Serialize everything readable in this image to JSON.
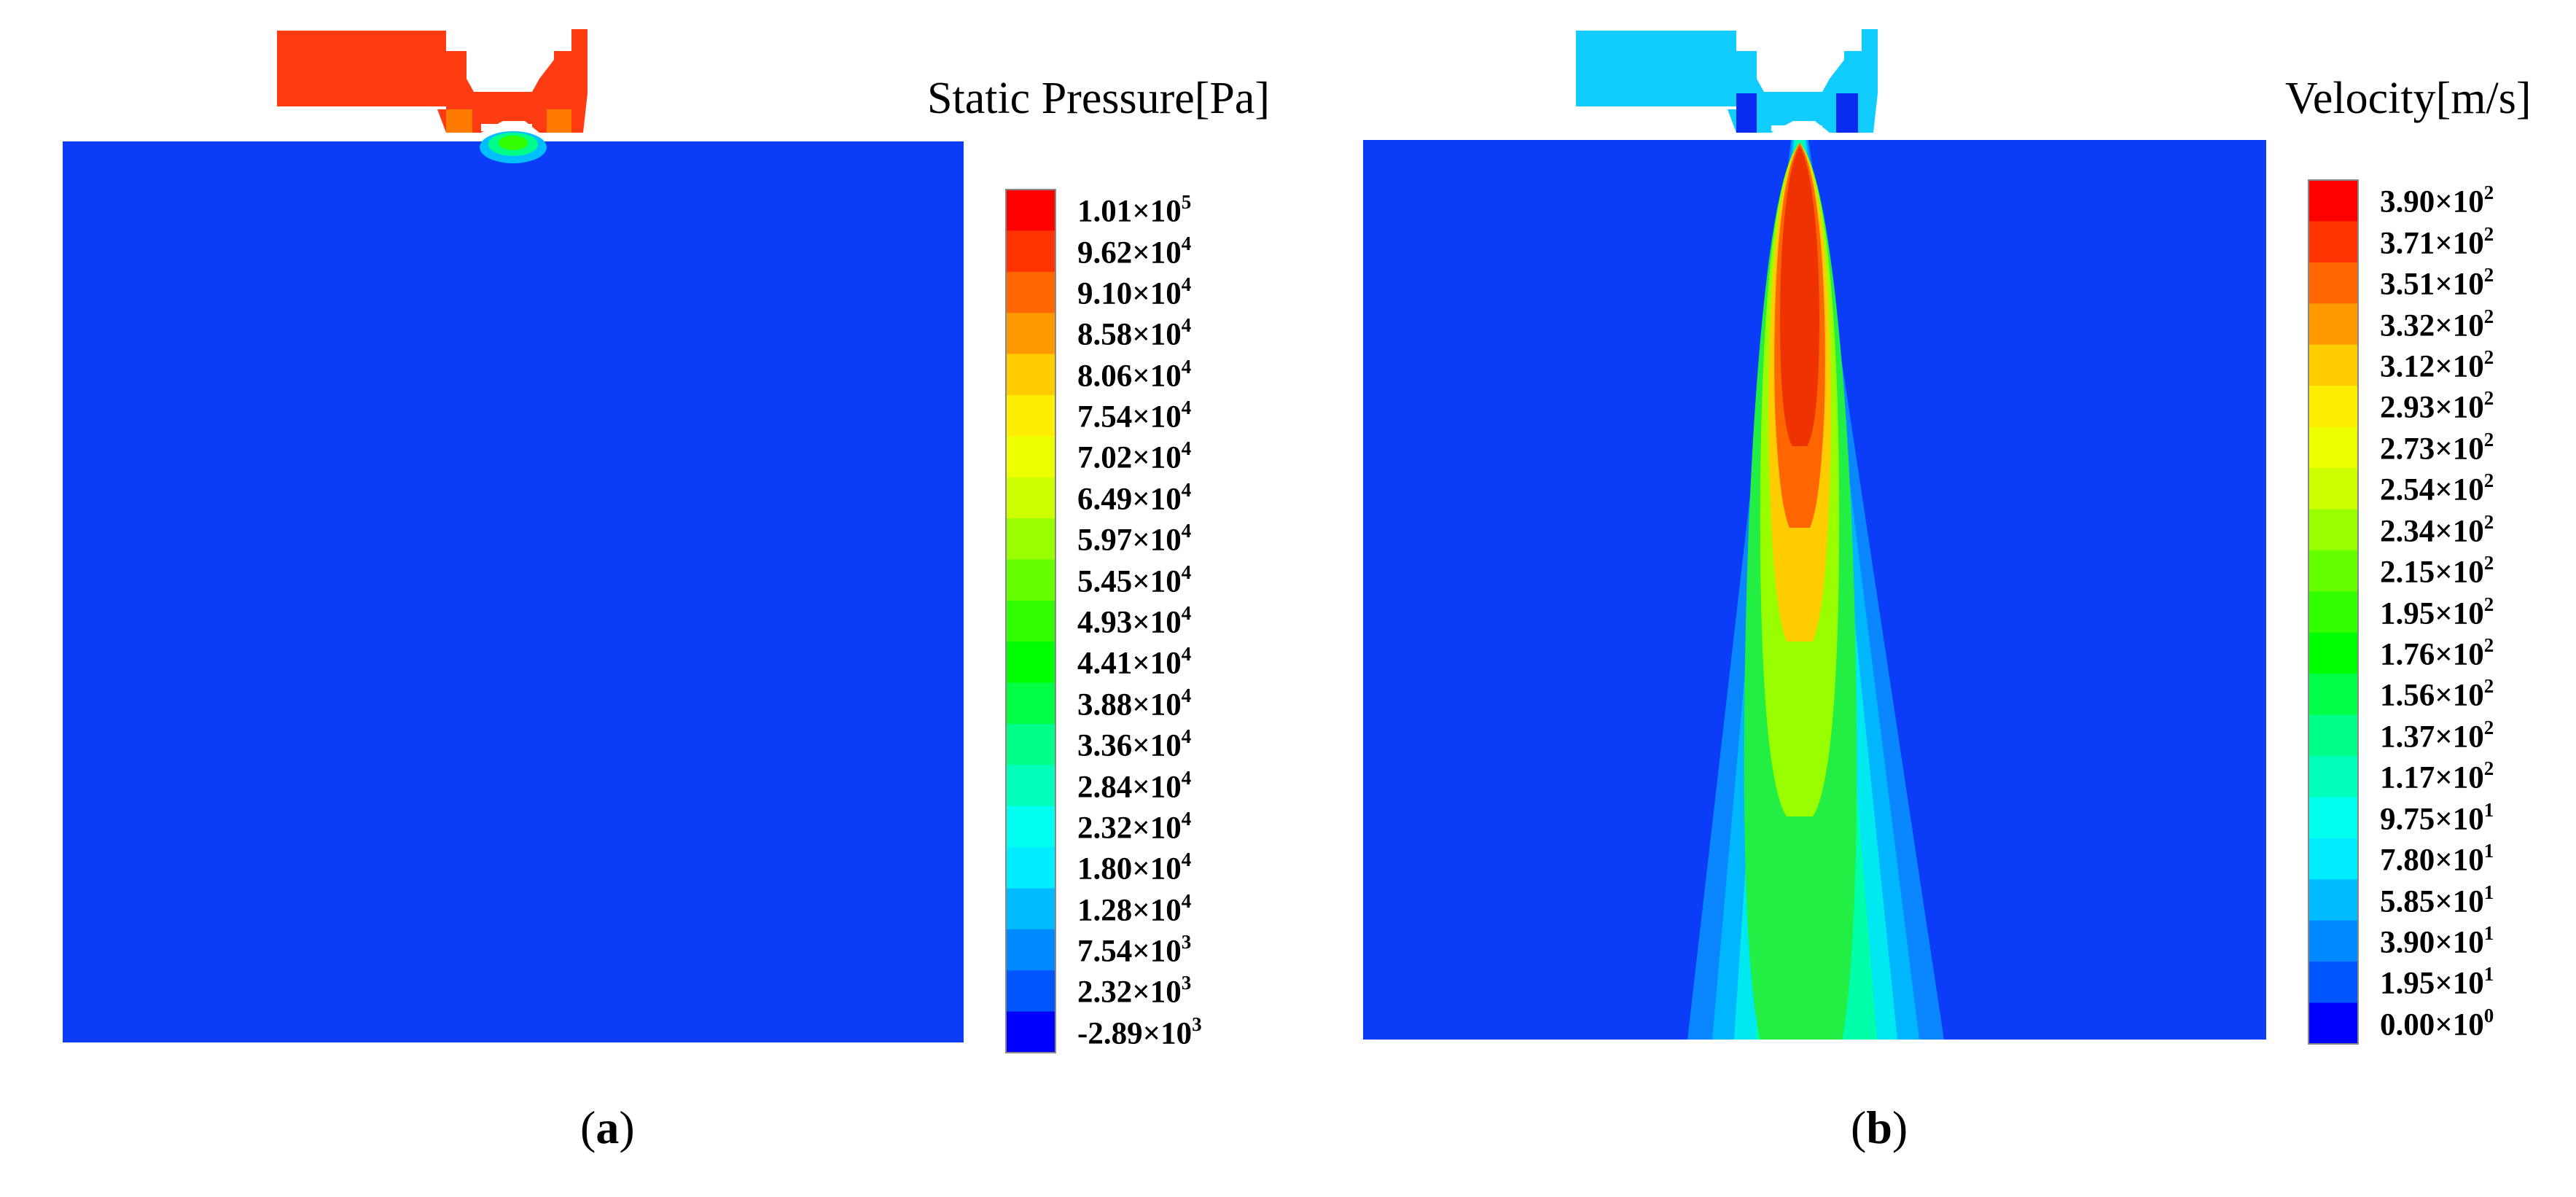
{
  "panels": [
    {
      "id": "a",
      "label": "a",
      "legend_title": "Static Pressure[Pa]",
      "colorbar": {
        "labels": [
          {
            "mantissa": "1.01",
            "exp": "5"
          },
          {
            "mantissa": "9.62",
            "exp": "4"
          },
          {
            "mantissa": "9.10",
            "exp": "4"
          },
          {
            "mantissa": "8.58",
            "exp": "4"
          },
          {
            "mantissa": "8.06",
            "exp": "4"
          },
          {
            "mantissa": "7.54",
            "exp": "4"
          },
          {
            "mantissa": "7.02",
            "exp": "4"
          },
          {
            "mantissa": "6.49",
            "exp": "4"
          },
          {
            "mantissa": "5.97",
            "exp": "4"
          },
          {
            "mantissa": "5.45",
            "exp": "4"
          },
          {
            "mantissa": "4.93",
            "exp": "4"
          },
          {
            "mantissa": "4.41",
            "exp": "4"
          },
          {
            "mantissa": "3.88",
            "exp": "4"
          },
          {
            "mantissa": "3.36",
            "exp": "4"
          },
          {
            "mantissa": "2.84",
            "exp": "4"
          },
          {
            "mantissa": "2.32",
            "exp": "4"
          },
          {
            "mantissa": "1.80",
            "exp": "4"
          },
          {
            "mantissa": "1.28",
            "exp": "4"
          },
          {
            "mantissa": "7.54",
            "exp": "3"
          },
          {
            "mantissa": "2.32",
            "exp": "3"
          },
          {
            "mantissa": "-2.89",
            "exp": "3"
          }
        ]
      }
    },
    {
      "id": "b",
      "label": "b",
      "legend_title": "Velocity[m/s]",
      "colorbar": {
        "labels": [
          {
            "mantissa": "3.90",
            "exp": "2"
          },
          {
            "mantissa": "3.71",
            "exp": "2"
          },
          {
            "mantissa": "3.51",
            "exp": "2"
          },
          {
            "mantissa": "3.32",
            "exp": "2"
          },
          {
            "mantissa": "3.12",
            "exp": "2"
          },
          {
            "mantissa": "2.93",
            "exp": "2"
          },
          {
            "mantissa": "2.73",
            "exp": "2"
          },
          {
            "mantissa": "2.54",
            "exp": "2"
          },
          {
            "mantissa": "2.34",
            "exp": "2"
          },
          {
            "mantissa": "2.15",
            "exp": "2"
          },
          {
            "mantissa": "1.95",
            "exp": "2"
          },
          {
            "mantissa": "1.76",
            "exp": "2"
          },
          {
            "mantissa": "1.56",
            "exp": "2"
          },
          {
            "mantissa": "1.37",
            "exp": "2"
          },
          {
            "mantissa": "1.17",
            "exp": "2"
          },
          {
            "mantissa": "9.75",
            "exp": "1"
          },
          {
            "mantissa": "7.80",
            "exp": "1"
          },
          {
            "mantissa": "5.85",
            "exp": "1"
          },
          {
            "mantissa": "3.90",
            "exp": "1"
          },
          {
            "mantissa": "1.95",
            "exp": "1"
          },
          {
            "mantissa": "0.00",
            "exp": "0"
          }
        ]
      }
    }
  ],
  "colormap": [
    "#ff0000",
    "#ff3300",
    "#ff6600",
    "#ff9900",
    "#ffcc00",
    "#ffee00",
    "#eeff00",
    "#ccff00",
    "#99ff00",
    "#66ff00",
    "#33ff00",
    "#00ff00",
    "#00ff44",
    "#00ff88",
    "#00ffbb",
    "#00ffee",
    "#00eeff",
    "#00bbff",
    "#0088ff",
    "#0055ff",
    "#0000ff"
  ],
  "field_color": "#0b3cf7"
}
